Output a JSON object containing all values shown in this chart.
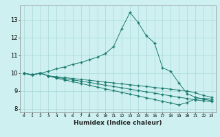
{
  "xlabel": "Humidex (Indice chaleur)",
  "ylabel": "",
  "background_color": "#cef0f0",
  "grid_color": "#a8d8d8",
  "line_color": "#1a7a6e",
  "x_ticks": [
    0,
    1,
    2,
    3,
    4,
    5,
    6,
    7,
    8,
    9,
    10,
    11,
    12,
    13,
    14,
    15,
    16,
    17,
    18,
    19,
    20,
    21,
    22,
    23
  ],
  "y_ticks": [
    8,
    9,
    10,
    11,
    12,
    13
  ],
  "ylim": [
    7.8,
    13.8
  ],
  "xlim": [
    -0.5,
    23.5
  ],
  "lines": [
    {
      "x": [
        0,
        1,
        2,
        3,
        4,
        5,
        6,
        7,
        8,
        9,
        10,
        11,
        12,
        13,
        14,
        15,
        16,
        17,
        18,
        19,
        20,
        21,
        22,
        23
      ],
      "y": [
        10.0,
        9.9,
        10.0,
        10.1,
        10.25,
        10.35,
        10.5,
        10.6,
        10.75,
        10.9,
        11.1,
        11.5,
        12.5,
        13.4,
        12.85,
        12.1,
        11.7,
        10.3,
        10.1,
        9.45,
        8.85,
        8.65,
        8.55,
        8.45
      ]
    },
    {
      "x": [
        0,
        1,
        2,
        3,
        4,
        5,
        6,
        7,
        8,
        9,
        10,
        11,
        12,
        13,
        14,
        15,
        16,
        17,
        18,
        19,
        20,
        21,
        22,
        23
      ],
      "y": [
        10.0,
        9.9,
        10.0,
        9.85,
        9.8,
        9.75,
        9.7,
        9.65,
        9.6,
        9.55,
        9.5,
        9.45,
        9.4,
        9.35,
        9.3,
        9.25,
        9.2,
        9.15,
        9.1,
        9.05,
        9.0,
        8.9,
        8.75,
        8.65
      ]
    },
    {
      "x": [
        0,
        1,
        2,
        3,
        4,
        5,
        6,
        7,
        8,
        9,
        10,
        11,
        12,
        13,
        14,
        15,
        16,
        17,
        18,
        19,
        20,
        21,
        22,
        23
      ],
      "y": [
        10.0,
        9.9,
        10.0,
        9.85,
        9.75,
        9.7,
        9.62,
        9.55,
        9.48,
        9.4,
        9.32,
        9.25,
        9.18,
        9.1,
        9.03,
        8.95,
        8.88,
        8.8,
        8.73,
        8.65,
        8.58,
        8.5,
        8.45,
        8.4
      ]
    },
    {
      "x": [
        0,
        1,
        2,
        3,
        4,
        5,
        6,
        7,
        8,
        9,
        10,
        11,
        12,
        13,
        14,
        15,
        16,
        17,
        18,
        19,
        20,
        21,
        22,
        23
      ],
      "y": [
        10.0,
        9.9,
        10.0,
        9.85,
        9.72,
        9.62,
        9.52,
        9.42,
        9.32,
        9.22,
        9.12,
        9.02,
        8.92,
        8.82,
        8.72,
        8.62,
        8.52,
        8.42,
        8.32,
        8.22,
        8.35,
        8.55,
        8.58,
        8.55
      ]
    }
  ]
}
